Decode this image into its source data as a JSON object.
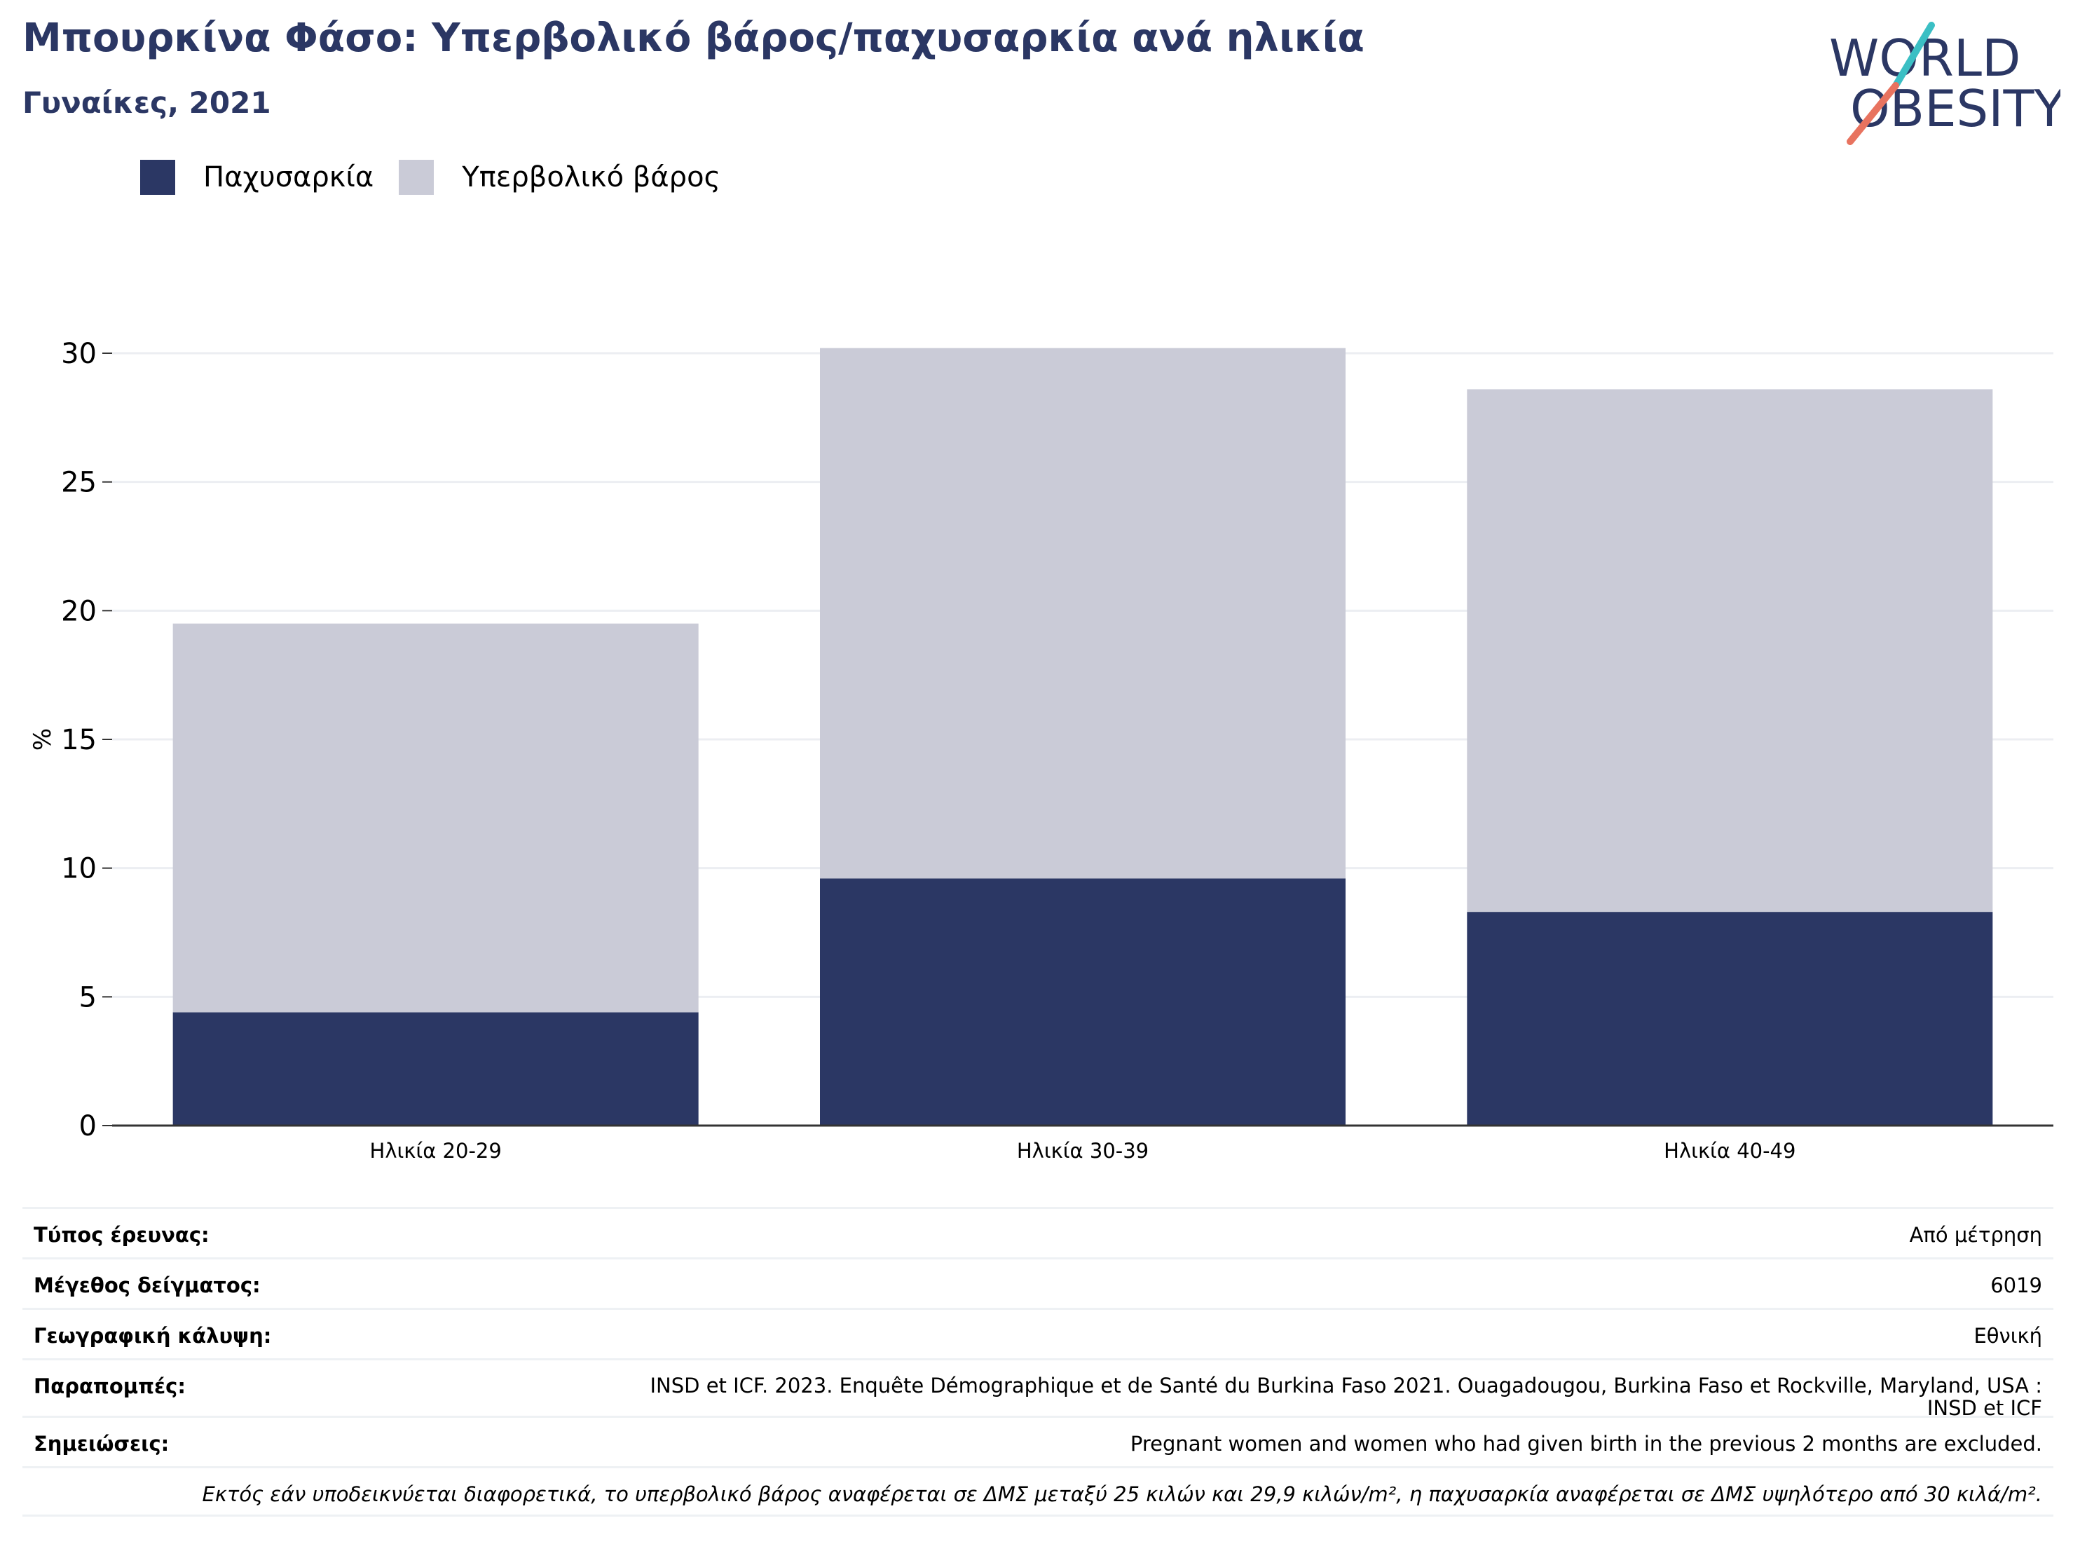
{
  "header": {
    "title": "Μπουρκίνα Φάσο: Υπερβολικό βάρος/παχυσαρκία ανά ηλικία",
    "subtitle": "Γυναίκες, 2021"
  },
  "logo": {
    "line1": "WORLD",
    "line2": "OBESITY",
    "colors": {
      "text": "#2b3764",
      "slash_top": "#3bbfc4",
      "slash_bottom": "#e8735f"
    }
  },
  "colors": {
    "obesity": "#2b3764",
    "overweight": "#cacbd7",
    "axis": "#333333",
    "grid": "#eceef2"
  },
  "chart_data": {
    "type": "bar",
    "stacked": true,
    "categories": [
      "Ηλικία 20-29",
      "Ηλικία 30-39",
      "Ηλικία 40-49"
    ],
    "series": [
      {
        "name": "Παχυσαρκία",
        "values": [
          4.4,
          9.6,
          8.3
        ]
      },
      {
        "name": "Υπερβολικό βάρος",
        "values": [
          15.1,
          20.6,
          20.3
        ]
      }
    ],
    "ylabel": "%",
    "ylim": [
      0,
      30
    ],
    "yticks": [
      0,
      5,
      10,
      15,
      20,
      25,
      30
    ],
    "grid": true,
    "legend_position": "top-left"
  },
  "meta": [
    {
      "label": "Τύπος έρευνας:",
      "value": "Από μέτρηση"
    },
    {
      "label": "Μέγεθος δείγματος:",
      "value": "6019"
    },
    {
      "label": "Γεωγραφική κάλυψη:",
      "value": "Εθνική"
    },
    {
      "label": "Παραπομπές:",
      "value": "INSD et ICF. 2023. Enquête Démographique et de Santé du Burkina Faso 2021. Ouagadougou, Burkina Faso et Rockville, Maryland, USA : INSD et ICF"
    },
    {
      "label": "Σημειώσεις:",
      "value": "Pregnant women and women who had given birth in the previous 2 months are excluded."
    }
  ],
  "footnote": "Εκτός εάν υποδεικνύεται διαφορετικά, το υπερβολικό βάρος αναφέρεται σε ΔΜΣ μεταξύ 25 κιλών και 29,9 κιλών/m², η παχυσαρκία αναφέρεται σε ΔΜΣ υψηλότερο από 30 κιλά/m²."
}
